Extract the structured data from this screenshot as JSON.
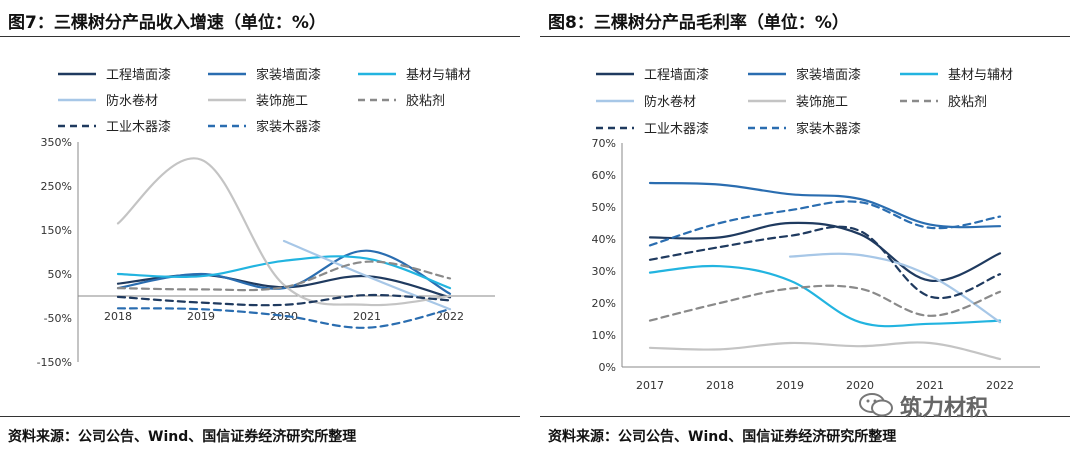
{
  "left_title": "图7：三棵树分产品收入增速（单位：%）",
  "right_title": "图8：三棵树分产品毛利率（单位：%）",
  "left_source": "资料来源：公司公告、Wind、国信证券经济研究所整理",
  "right_source": "资料来源：公司公告、Wind、国信证券经济研究所整理",
  "watermark": "筑力材积",
  "colors": {
    "工程墙面漆": "#1f3a5f",
    "家装墙面漆": "#2a6db0",
    "基材与辅材": "#22b4e0",
    "防水卷材": "#a7c7e7",
    "装饰施工": "#c4c4c4",
    "胶粘剂": "#8a8a8a",
    "工业木器漆": "#1f3a5f",
    "家装木器漆": "#2a6db0"
  },
  "chart_data": [
    {
      "type": "line",
      "title": "图7：三棵树分产品收入增速（单位：%）",
      "x": [
        "2018",
        "2019",
        "2020",
        "2021",
        "2022"
      ],
      "ylim": [
        -150,
        350
      ],
      "yticks": [
        "350%",
        "250%",
        "150%",
        "50%",
        "-50%",
        "-150%"
      ],
      "ytick_values": [
        350,
        250,
        150,
        50,
        -50,
        -150
      ],
      "legend_position": "top",
      "grid": false,
      "series": [
        {
          "name": "工程墙面漆",
          "style": "solid",
          "values": [
            28,
            48,
            20,
            45,
            -3
          ]
        },
        {
          "name": "家装墙面漆",
          "style": "solid",
          "values": [
            18,
            50,
            18,
            103,
            5
          ]
        },
        {
          "name": "基材与辅材",
          "style": "solid",
          "values": [
            50,
            45,
            80,
            85,
            18
          ]
        },
        {
          "name": "防水卷材",
          "style": "solid",
          "values": [
            null,
            null,
            125,
            45,
            -30
          ]
        },
        {
          "name": "装饰施工",
          "style": "solid",
          "values": [
            165,
            310,
            25,
            -20,
            0
          ]
        },
        {
          "name": "胶粘剂",
          "style": "dashed",
          "values": [
            18,
            15,
            20,
            78,
            40
          ]
        },
        {
          "name": "工业木器漆",
          "style": "dashed",
          "values": [
            -2,
            -15,
            -20,
            2,
            -10
          ]
        },
        {
          "name": "家装木器漆",
          "style": "dashed",
          "values": [
            -28,
            -30,
            -45,
            -72,
            -30
          ]
        }
      ]
    },
    {
      "type": "line",
      "title": "图8：三棵树分产品毛利率（单位：%）",
      "x": [
        "2017",
        "2018",
        "2019",
        "2020",
        "2021",
        "2022"
      ],
      "ylim": [
        0,
        70
      ],
      "yticks": [
        "70%",
        "60%",
        "50%",
        "40%",
        "30%",
        "20%",
        "10%",
        "0%"
      ],
      "ytick_values": [
        70,
        60,
        50,
        40,
        30,
        20,
        10,
        0
      ],
      "legend_position": "top",
      "grid": false,
      "series": [
        {
          "name": "工程墙面漆",
          "style": "solid",
          "values": [
            40.5,
            40.5,
            45,
            41.5,
            27,
            35.5
          ]
        },
        {
          "name": "家装墙面漆",
          "style": "solid",
          "values": [
            57.5,
            57,
            54,
            52.5,
            44.5,
            44
          ]
        },
        {
          "name": "基材与辅材",
          "style": "solid",
          "values": [
            29.5,
            31.5,
            27,
            14,
            13.5,
            14.5
          ]
        },
        {
          "name": "防水卷材",
          "style": "solid",
          "values": [
            null,
            null,
            34.5,
            35,
            28.5,
            14
          ]
        },
        {
          "name": "装饰施工",
          "style": "solid",
          "values": [
            6,
            5.5,
            7.5,
            6.5,
            7.5,
            2.5
          ]
        },
        {
          "name": "胶粘剂",
          "style": "dashed",
          "values": [
            14.5,
            20,
            24.5,
            24.5,
            16,
            23.5
          ]
        },
        {
          "name": "工业木器漆",
          "style": "dashed",
          "values": [
            33.5,
            37.5,
            41,
            42.5,
            22,
            29
          ]
        },
        {
          "name": "家装木器漆",
          "style": "dashed",
          "values": [
            38,
            45,
            49,
            51.5,
            43.5,
            47
          ]
        }
      ]
    }
  ]
}
